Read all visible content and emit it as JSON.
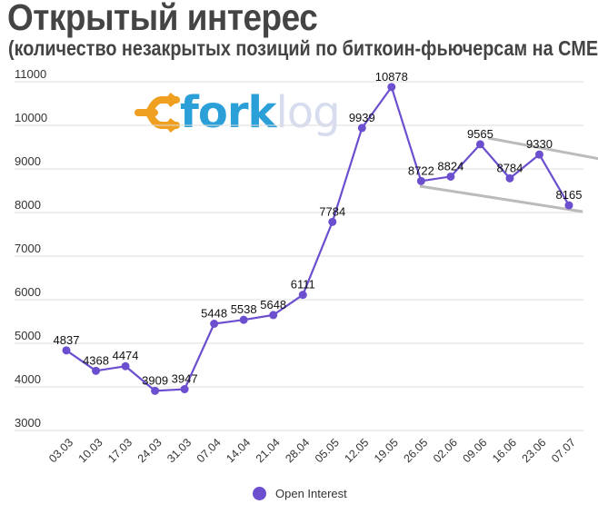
{
  "header": {
    "title": "Открытый интерес",
    "subtitle": "(количество незакрытых позиций по биткоин-фьючерсам на CME)"
  },
  "watermark": {
    "icon": "forklog-arrow-icon",
    "fork": "fork",
    "log": "log",
    "colors": {
      "arrow": "#f0a020",
      "fork": "#2a9fd8",
      "log": "#d8dcef"
    }
  },
  "legend": {
    "label": "Open Interest",
    "color": "#6b4fcf"
  },
  "chart_data": {
    "type": "line",
    "title": "Открытый интерес",
    "subtitle": "(количество незакрытых позиций по биткоин-фьючерсам на CME)",
    "xlabel": "",
    "ylabel": "",
    "ylim": [
      3000,
      11000
    ],
    "yticks": [
      3000,
      4000,
      5000,
      6000,
      7000,
      8000,
      9000,
      10000,
      11000
    ],
    "grid": true,
    "legend_position": "bottom",
    "categories": [
      "03.03",
      "10.03",
      "17.03",
      "24.03",
      "31.03",
      "07.04",
      "14.04",
      "21.04",
      "28.04",
      "05.05",
      "12.05",
      "19.05",
      "26.05",
      "02.06",
      "09.06",
      "16.06",
      "23.06",
      "07.07"
    ],
    "series": [
      {
        "name": "Open Interest",
        "color": "#6b4fcf",
        "values": [
          4837,
          4368,
          4474,
          3909,
          3947,
          5448,
          5538,
          5648,
          6111,
          7784,
          9939,
          10878,
          8722,
          8824,
          9565,
          8784,
          9330,
          8165
        ]
      }
    ],
    "annotations": [
      {
        "type": "trendline",
        "name": "upper-channel-line",
        "from": [
          "09.06",
          9700
        ],
        "to": [
          "07.07+",
          9220
        ],
        "color": "#bbbbbb"
      },
      {
        "type": "trendline",
        "name": "lower-channel-line",
        "from": [
          "26.05",
          8600
        ],
        "to": [
          "07.07",
          8000
        ],
        "color": "#bbbbbb"
      }
    ]
  }
}
